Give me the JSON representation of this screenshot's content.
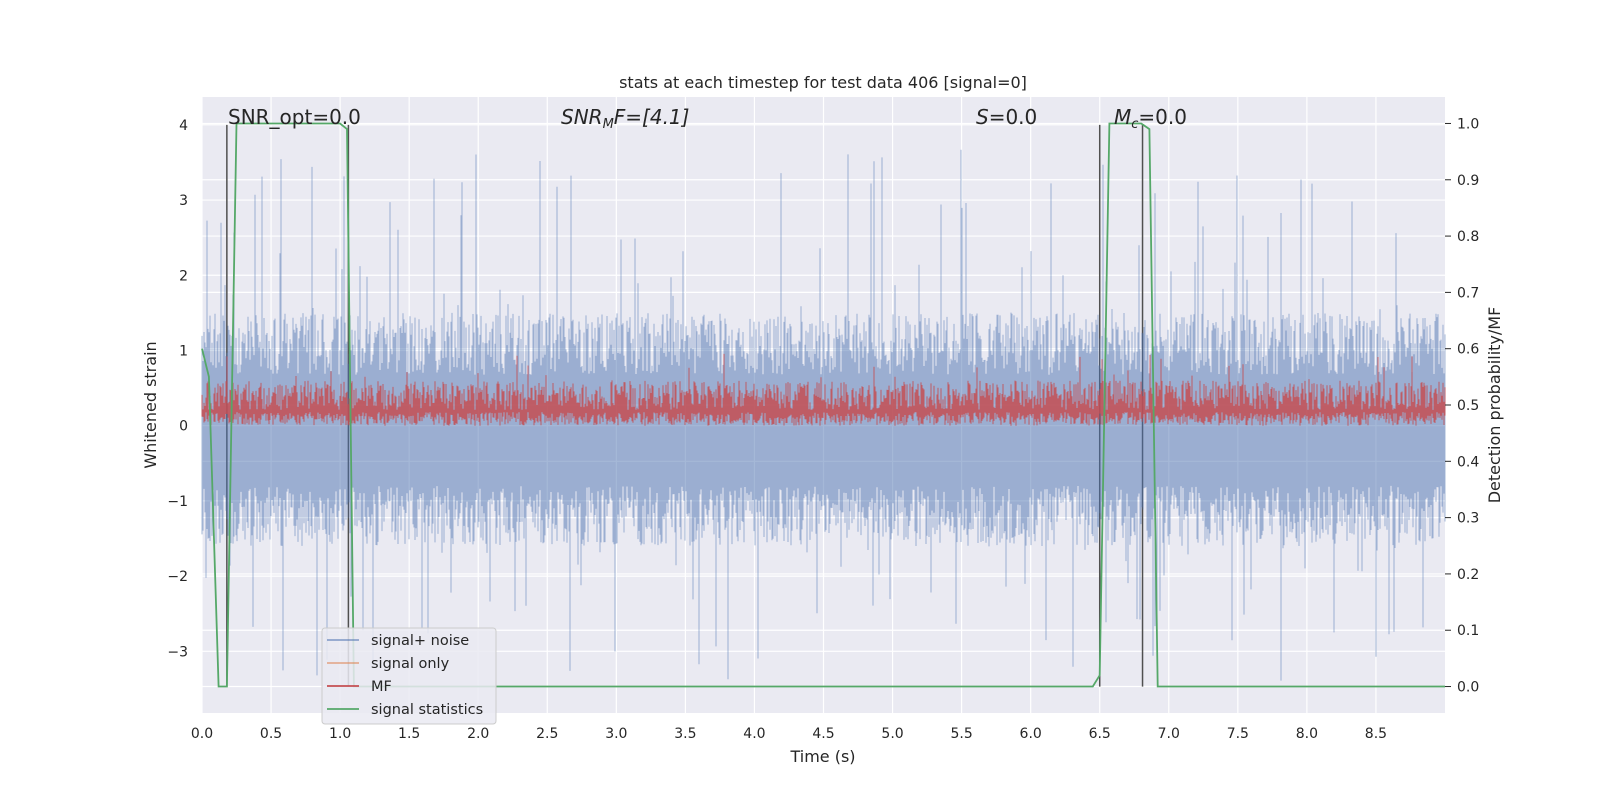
{
  "chart_data": {
    "type": "line",
    "title": "stats at each timestep for test data 406 [signal=0]",
    "xlabel": "Time (s)",
    "ylabel": "Whitened strain",
    "y2label": "Detection probability/MF",
    "xlim": [
      0,
      9
    ],
    "ylim": [
      -3.82,
      4.37
    ],
    "y2lim": [
      -0.047,
      1.047
    ],
    "grid": true,
    "legend_position": "lower-left",
    "x_ticks": [
      0.0,
      0.5,
      1.0,
      1.5,
      2.0,
      2.5,
      3.0,
      3.5,
      4.0,
      4.5,
      5.0,
      5.5,
      6.0,
      6.5,
      7.0,
      7.5,
      8.0,
      8.5
    ],
    "x_tick_labels": [
      "0.0",
      "0.5",
      "1.0",
      "1.5",
      "2.0",
      "2.5",
      "3.0",
      "3.5",
      "4.0",
      "4.5",
      "5.0",
      "5.5",
      "6.0",
      "6.5",
      "7.0",
      "7.5",
      "8.0",
      "8.5"
    ],
    "y_ticks": [
      -3,
      -2,
      -1,
      0,
      1,
      2,
      3,
      4
    ],
    "y_tick_labels": [
      "−3",
      "−2",
      "−1",
      "0",
      "1",
      "2",
      "3",
      "4"
    ],
    "y2_ticks": [
      0.0,
      0.1,
      0.2,
      0.3,
      0.4,
      0.5,
      0.6,
      0.7,
      0.8,
      0.9,
      1.0
    ],
    "y2_tick_labels": [
      "0.0",
      "0.1",
      "0.2",
      "0.3",
      "0.4",
      "0.5",
      "0.6",
      "0.7",
      "0.8",
      "0.9",
      "1.0"
    ],
    "annotations": {
      "snr_opt": "SNR_opt=0.0",
      "snr_mf_main": "SNR",
      "snr_mf_sub": "M",
      "snr_mf_rest": "F=[4.1]",
      "s_main": "S",
      "s_rest": "=0.0",
      "mc_main": "M",
      "mc_sub": "c",
      "mc_rest": "=0.0"
    },
    "vlines": [
      0.18,
      1.06,
      6.5,
      6.81
    ],
    "series": [
      {
        "name": "signal+ noise",
        "color": "#4c72b0",
        "noise_band": {
          "center": 0.0,
          "upper_typical": 1.5,
          "upper_peak": 3.7,
          "lower_typical": -1.6,
          "lower_peak": -3.4
        }
      },
      {
        "name": "signal only",
        "color": "#dd8452",
        "values": []
      },
      {
        "name": "MF",
        "color": "#c44e52",
        "noise_band": {
          "base": 0.0,
          "upper_typical": 0.6,
          "upper_peak": 0.98
        }
      },
      {
        "name": "signal statistics",
        "color": "#55a868",
        "x": [
          0.0,
          0.05,
          0.12,
          0.18,
          0.25,
          1.0,
          1.05,
          1.1,
          1.15,
          6.45,
          6.5,
          6.57,
          6.8,
          6.86,
          6.92,
          9.0
        ],
        "values": [
          0.6,
          0.55,
          0.0,
          0.0,
          1.0,
          1.0,
          0.99,
          0.0,
          0.0,
          0.0,
          0.02,
          1.0,
          1.0,
          0.99,
          0.0,
          0.0
        ]
      }
    ]
  }
}
